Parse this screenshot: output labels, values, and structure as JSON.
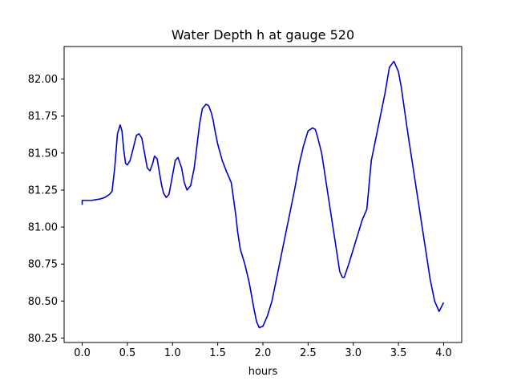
{
  "chart_data": {
    "type": "line",
    "title": "Water Depth h at gauge 520",
    "xlabel": "hours",
    "ylabel": "",
    "xlim": [
      -0.2,
      4.2
    ],
    "ylim": [
      80.22,
      82.22
    ],
    "xticks": [
      0.0,
      0.5,
      1.0,
      1.5,
      2.0,
      2.5,
      3.0,
      3.5,
      4.0
    ],
    "xtick_labels": [
      "0.0",
      "0.5",
      "1.0",
      "1.5",
      "2.0",
      "2.5",
      "3.0",
      "3.5",
      "4.0"
    ],
    "yticks": [
      80.25,
      80.5,
      80.75,
      81.0,
      81.25,
      81.5,
      81.75,
      82.0
    ],
    "ytick_labels": [
      "80.25",
      "80.50",
      "80.75",
      "81.00",
      "81.25",
      "81.50",
      "81.75",
      "82.00"
    ],
    "grid": false,
    "series": [
      {
        "color": "#0000cc",
        "x": [
          0.0,
          0.0,
          0.05,
          0.1,
          0.15,
          0.2,
          0.25,
          0.3,
          0.33,
          0.36,
          0.39,
          0.42,
          0.44,
          0.46,
          0.48,
          0.5,
          0.53,
          0.56,
          0.6,
          0.63,
          0.66,
          0.69,
          0.72,
          0.75,
          0.78,
          0.8,
          0.83,
          0.86,
          0.88,
          0.9,
          0.93,
          0.96,
          1.0,
          1.03,
          1.06,
          1.1,
          1.13,
          1.16,
          1.2,
          1.24,
          1.27,
          1.3,
          1.33,
          1.37,
          1.4,
          1.43,
          1.45,
          1.47,
          1.5,
          1.55,
          1.6,
          1.65,
          1.7,
          1.72,
          1.75,
          1.8,
          1.85,
          1.9,
          1.93,
          1.96,
          2.0,
          2.05,
          2.1,
          2.15,
          2.2,
          2.3,
          2.35,
          2.4,
          2.45,
          2.5,
          2.55,
          2.58,
          2.6,
          2.65,
          2.7,
          2.75,
          2.8,
          2.85,
          2.88,
          2.9,
          2.95,
          3.0,
          3.05,
          3.1,
          3.15,
          3.2,
          3.3,
          3.35,
          3.4,
          3.45,
          3.5,
          3.53,
          3.6,
          3.7,
          3.8,
          3.85,
          3.9,
          3.95,
          4.0
        ],
        "y": [
          81.15,
          81.18,
          81.18,
          81.18,
          81.185,
          81.19,
          81.2,
          81.22,
          81.24,
          81.4,
          81.63,
          81.69,
          81.65,
          81.52,
          81.43,
          81.42,
          81.45,
          81.52,
          81.62,
          81.63,
          81.6,
          81.5,
          81.4,
          81.38,
          81.43,
          81.48,
          81.46,
          81.35,
          81.28,
          81.23,
          81.2,
          81.22,
          81.35,
          81.45,
          81.47,
          81.4,
          81.3,
          81.25,
          81.28,
          81.4,
          81.55,
          81.7,
          81.8,
          81.83,
          81.82,
          81.77,
          81.72,
          81.65,
          81.56,
          81.45,
          81.37,
          81.3,
          81.08,
          80.97,
          80.85,
          80.75,
          80.62,
          80.45,
          80.36,
          80.32,
          80.33,
          80.4,
          80.5,
          80.65,
          80.8,
          81.1,
          81.25,
          81.42,
          81.55,
          81.65,
          81.67,
          81.66,
          81.62,
          81.5,
          81.3,
          81.1,
          80.9,
          80.7,
          80.66,
          80.66,
          80.75,
          80.85,
          80.95,
          81.05,
          81.12,
          81.45,
          81.75,
          81.9,
          82.08,
          82.12,
          82.05,
          81.95,
          81.65,
          81.25,
          80.85,
          80.65,
          80.5,
          80.43,
          80.49
        ]
      }
    ]
  }
}
